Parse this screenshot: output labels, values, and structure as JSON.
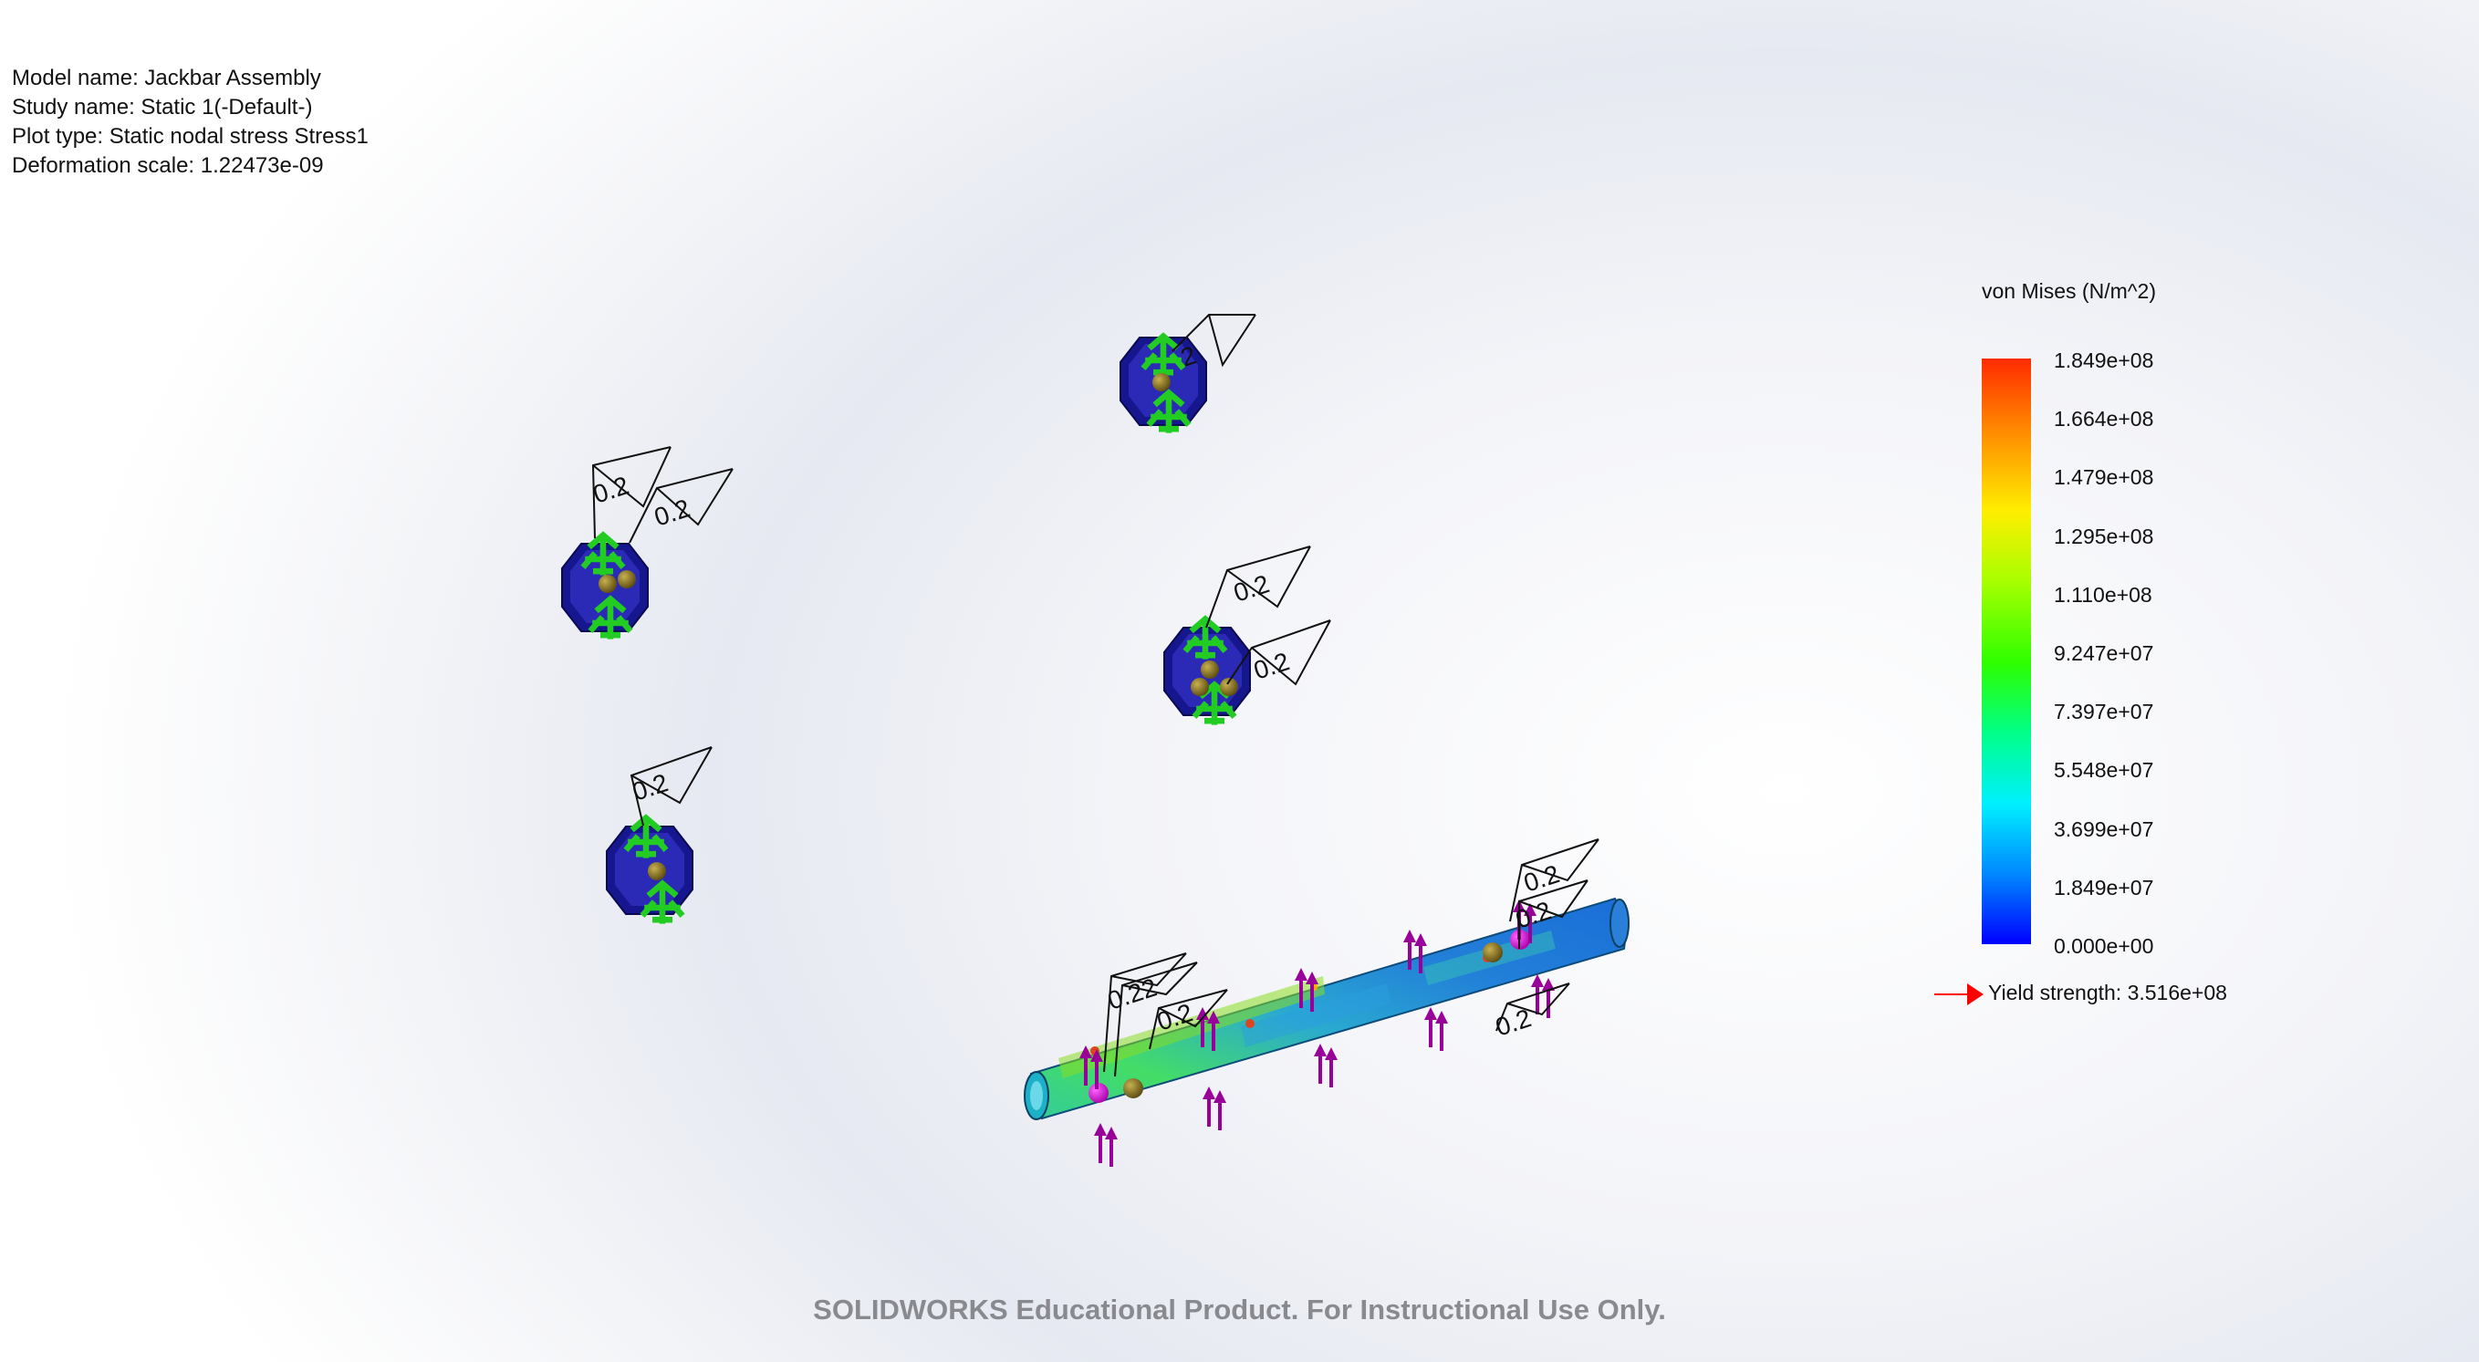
{
  "info": {
    "model_name": "Model name: Jackbar Assembly",
    "study_name": "Study name: Static 1(-Default-)",
    "plot_type": "Plot type: Static nodal stress Stress1",
    "deformation_scale": "Deformation scale: 1.22473e-09"
  },
  "legend": {
    "title": "von Mises (N/m^2)",
    "ticks": [
      "1.849e+08",
      "1.664e+08",
      "1.479e+08",
      "1.295e+08",
      "1.110e+08",
      "9.247e+07",
      "7.397e+07",
      "5.548e+07",
      "3.699e+07",
      "1.849e+07",
      "0.000e+00"
    ],
    "yield_strength": "Yield strength: 3.516e+08",
    "colors": {
      "max": "#ff2a00",
      "min": "#0000ff",
      "yield_marker": "#ff0000"
    }
  },
  "annotations": {
    "roughness_label": "0.2",
    "roughness_label_overlap": "0.22",
    "truncated_label": "2",
    "colors": {
      "part_fill": "#1a1a9a",
      "fixture": "#22cc22",
      "load_arrow": "#990099"
    }
  },
  "watermark": "SOLIDWORKS Educational Product. For Instructional Use Only."
}
